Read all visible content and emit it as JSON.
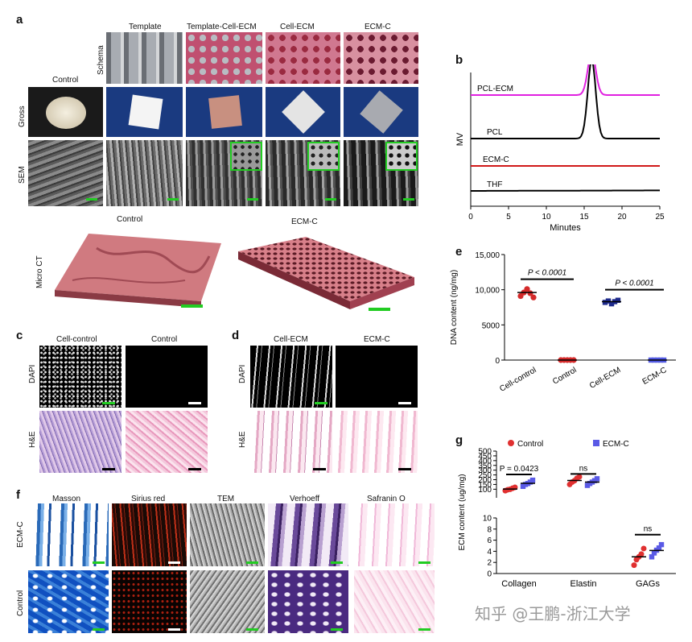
{
  "panels": {
    "a": "a",
    "b": "b",
    "c": "c",
    "d": "d",
    "e": "e",
    "f": "f",
    "g": "g"
  },
  "panel_a": {
    "columns": [
      "Template",
      "Template-Cell-ECM",
      "Cell-ECM",
      "ECM-C"
    ],
    "control_label": "Control",
    "rows": [
      "Schema",
      "Gross",
      "SEM"
    ],
    "microct_row": "Micro CT",
    "microct_labels": [
      "Control",
      "ECM-C"
    ]
  },
  "panel_c": {
    "columns": [
      "Cell-control",
      "Control"
    ],
    "rows": [
      "DAPI",
      "H&E"
    ]
  },
  "panel_d": {
    "columns": [
      "Cell-ECM",
      "ECM-C"
    ],
    "rows": [
      "DAPI",
      "H&E"
    ]
  },
  "panel_f": {
    "columns": [
      "Masson",
      "Sirius red",
      "TEM",
      "Verhoeff",
      "Safranin O"
    ],
    "rows": [
      "ECM-C",
      "Control"
    ]
  },
  "chart_data": [
    {
      "panel": "b",
      "type": "line",
      "xlabel": "Minutes",
      "ylabel": "MV",
      "xlim": [
        0,
        25
      ],
      "xticks": [
        0,
        5,
        10,
        15,
        20,
        25
      ],
      "series": [
        {
          "name": "PCL-ECM",
          "color": "#e020e0",
          "peak_at": 16,
          "peak_height": 0.35
        },
        {
          "name": "PCL",
          "color": "#000000",
          "peak_at": 16,
          "peak_height": 0.65
        },
        {
          "name": "ECM-C",
          "color": "#d01818",
          "peak_at": null,
          "peak_height": 0
        },
        {
          "name": "THF",
          "color": "#000000",
          "peak_at": null,
          "peak_height": 0
        }
      ]
    },
    {
      "panel": "e",
      "type": "scatter",
      "ylabel": "DNA content (ng/mg)",
      "ylim": [
        0,
        15000
      ],
      "yticks": [
        "0",
        "5000",
        "10,000",
        "15,000"
      ],
      "categories": [
        "Cell-control",
        "Control",
        "Cell-ECM",
        "ECM-C"
      ],
      "colors": [
        "#d42a2a",
        "#d42a2a",
        "#1e2a8c",
        "#5058e0"
      ],
      "means": [
        9600,
        0,
        8300,
        0
      ],
      "points": [
        [
          9100,
          9600,
          10100,
          9500,
          8900
        ],
        [
          0,
          0,
          0,
          0,
          0
        ],
        [
          8200,
          8400,
          8000,
          8300,
          8500
        ],
        [
          0,
          0,
          0,
          0,
          0
        ]
      ],
      "annotations": [
        {
          "text": "P < 0.0001",
          "between": [
            "Cell-control",
            "Control"
          ],
          "y": 11500
        },
        {
          "text": "P < 0.0001",
          "between": [
            "Cell-ECM",
            "ECM-C"
          ],
          "y": 10000
        }
      ]
    },
    {
      "panel": "g",
      "type": "scatter",
      "ylabel": "ECM content (ug/mg)",
      "categories": [
        "Collagen",
        "Elastin",
        "GAGs"
      ],
      "series": [
        {
          "name": "Control",
          "color": "#e03030",
          "marker": "circle",
          "points": [
            [
              85,
              95,
              100,
              110,
              120
            ],
            [
              150,
              175,
              190,
              215,
              230
            ],
            [
              1.5,
              2.5,
              3.0,
              3.5,
              4.5
            ]
          ]
        },
        {
          "name": "ECM-C",
          "color": "#5a5ae6",
          "marker": "square",
          "points": [
            [
              130,
              150,
              160,
              175,
              195
            ],
            [
              140,
              160,
              175,
              190,
              210
            ],
            [
              3.0,
              3.7,
              4.2,
              4.6,
              5.2
            ]
          ]
        }
      ],
      "upper_axis": {
        "ylim": [
          10,
          500
        ],
        "yticks": [
          "10",
          "100",
          "150",
          "200",
          "250",
          "300",
          "350",
          "400",
          "450",
          "500"
        ]
      },
      "lower_axis": {
        "ylim": [
          0,
          10
        ],
        "yticks": [
          "0",
          "2",
          "4",
          "6",
          "8",
          "10"
        ]
      },
      "annotations": [
        {
          "text": "P = 0.0423",
          "category": "Collagen"
        },
        {
          "text": "ns",
          "category": "Elastin"
        },
        {
          "text": "ns",
          "category": "GAGs"
        }
      ]
    }
  ],
  "watermark": "知乎 @王鹏-浙江大学"
}
